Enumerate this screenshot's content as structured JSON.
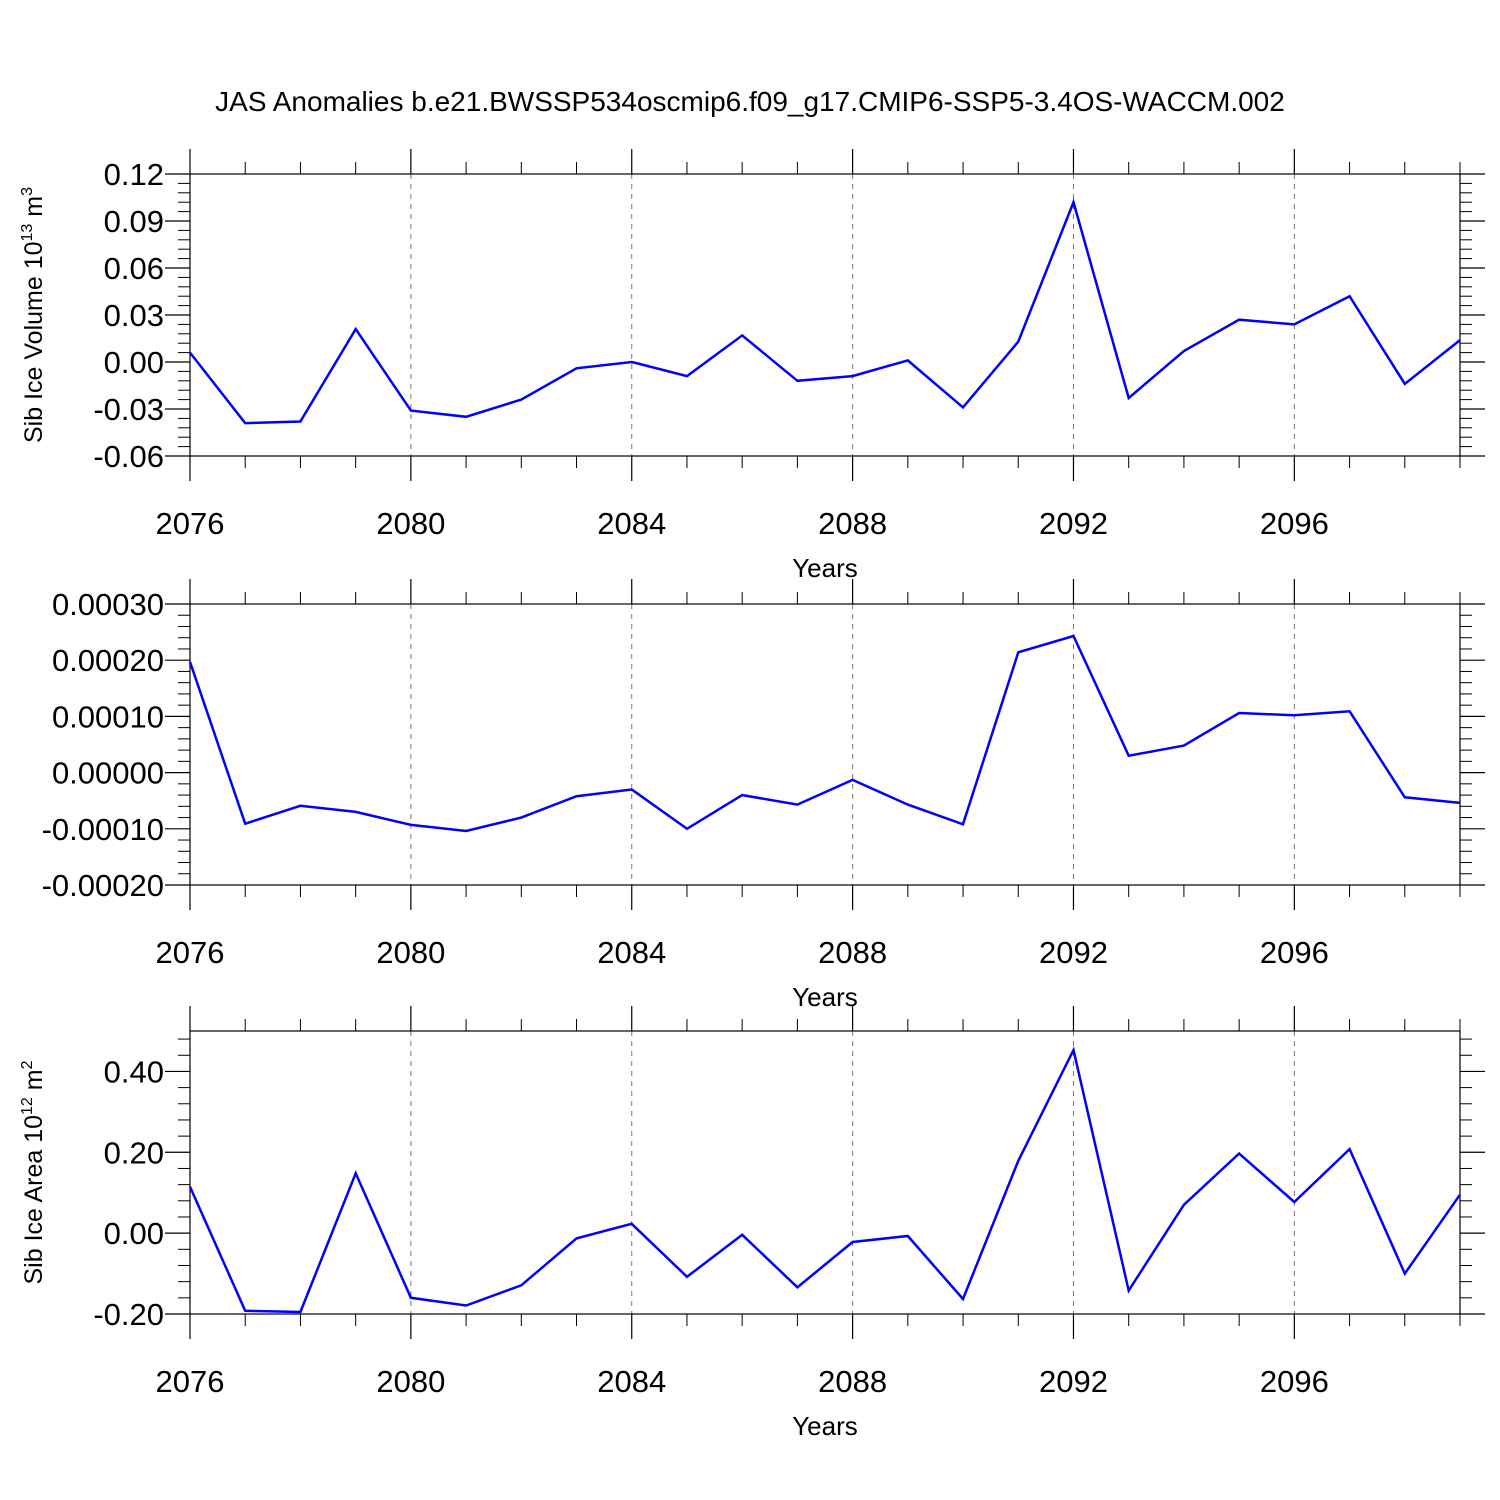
{
  "title": "JAS Anomalies b.e21.BWSSP534oscmip6.f09_g17.CMIP6-SSP5-3.4OS-WACCM.002",
  "chart_data": [
    {
      "type": "line",
      "ylabel": "Sib Ice Volume 10",
      "ylabel_exp": "13",
      "ylabel_unit": " m",
      "ylabel_unit_exp": "3",
      "xlabel": "Years",
      "xlim": [
        2076,
        2099
      ],
      "ylim": [
        -0.06,
        0.12
      ],
      "yticks": [
        0.12,
        0.09,
        0.06,
        0.03,
        0.0,
        -0.03,
        -0.06
      ],
      "ytick_labels": [
        "0.12",
        "0.09",
        "0.06",
        "0.03",
        "0.00",
        "-0.03",
        "-0.06"
      ],
      "xticks": [
        2076,
        2080,
        2084,
        2088,
        2092,
        2096
      ],
      "xtick_labels": [
        "2076",
        "2080",
        "2084",
        "2088",
        "2092",
        "2096"
      ],
      "x": [
        2076,
        2077,
        2078,
        2079,
        2080,
        2081,
        2082,
        2083,
        2084,
        2085,
        2086,
        2087,
        2088,
        2089,
        2090,
        2091,
        2092,
        2093,
        2094,
        2095,
        2096,
        2097,
        2098,
        2099
      ],
      "series": [
        {
          "values": [
            0.006,
            -0.039,
            -0.038,
            0.021,
            -0.031,
            -0.035,
            -0.024,
            -0.004,
            0.0,
            -0.009,
            0.017,
            -0.012,
            -0.009,
            0.001,
            -0.029,
            0.013,
            0.102,
            -0.023,
            0.007,
            0.027,
            0.024,
            0.042,
            -0.014,
            0.014
          ],
          "color": "#0000ff"
        }
      ],
      "vgrid": "dashed at major x ticks"
    },
    {
      "type": "line",
      "ylabel": "",
      "xlabel": "Years",
      "xlim": [
        2076,
        2099
      ],
      "ylim": [
        -0.0002,
        0.0003
      ],
      "yticks": [
        0.0003,
        0.0002,
        0.0001,
        0.0,
        -0.0001,
        -0.0002
      ],
      "ytick_labels": [
        "0.00030",
        "0.00020",
        "0.00010",
        "0.00000",
        "-0.00010",
        "-0.00020"
      ],
      "xticks": [
        2076,
        2080,
        2084,
        2088,
        2092,
        2096
      ],
      "xtick_labels": [
        "2076",
        "2080",
        "2084",
        "2088",
        "2092",
        "2096"
      ],
      "x": [
        2076,
        2077,
        2078,
        2079,
        2080,
        2081,
        2082,
        2083,
        2084,
        2085,
        2086,
        2087,
        2088,
        2089,
        2090,
        2091,
        2092,
        2093,
        2094,
        2095,
        2096,
        2097,
        2098,
        2099
      ],
      "series": [
        {
          "values": [
            0.000197,
            -9.1e-05,
            -5.9e-05,
            -7e-05,
            -9.3e-05,
            -0.000104,
            -8e-05,
            -4.2e-05,
            -3e-05,
            -0.0001,
            -4e-05,
            -5.7e-05,
            -1.3e-05,
            -5.7e-05,
            -9.2e-05,
            0.000214,
            0.000243,
            3e-05,
            4.8e-05,
            0.000106,
            0.000102,
            0.000109,
            -4.4e-05,
            -5.4e-05
          ],
          "color": "#0000ff"
        }
      ],
      "vgrid": "dashed at major x ticks"
    },
    {
      "type": "line",
      "ylabel": "Sib Ice Area 10",
      "ylabel_exp": "12",
      "ylabel_unit": " m",
      "ylabel_unit_exp": "2",
      "xlabel": "Years",
      "xlim": [
        2076,
        2099
      ],
      "ylim": [
        -0.2,
        0.5
      ],
      "yticks": [
        0.4,
        0.2,
        0.0,
        -0.2
      ],
      "ytick_labels": [
        "0.40",
        "0.20",
        "0.00",
        "-0.20"
      ],
      "xticks": [
        2076,
        2080,
        2084,
        2088,
        2092,
        2096
      ],
      "xtick_labels": [
        "2076",
        "2080",
        "2084",
        "2088",
        "2092",
        "2096"
      ],
      "x": [
        2076,
        2077,
        2078,
        2079,
        2080,
        2081,
        2082,
        2083,
        2084,
        2085,
        2086,
        2087,
        2088,
        2089,
        2090,
        2091,
        2092,
        2093,
        2094,
        2095,
        2096,
        2097,
        2098,
        2099
      ],
      "series": [
        {
          "values": [
            0.115,
            -0.192,
            -0.195,
            0.148,
            -0.16,
            -0.179,
            -0.129,
            -0.013,
            0.023,
            -0.108,
            -0.004,
            -0.134,
            -0.022,
            -0.007,
            -0.163,
            0.179,
            0.453,
            -0.142,
            0.07,
            0.197,
            0.077,
            0.208,
            -0.1,
            0.095
          ],
          "color": "#0000ff"
        }
      ],
      "vgrid": "dashed at major x ticks"
    }
  ]
}
